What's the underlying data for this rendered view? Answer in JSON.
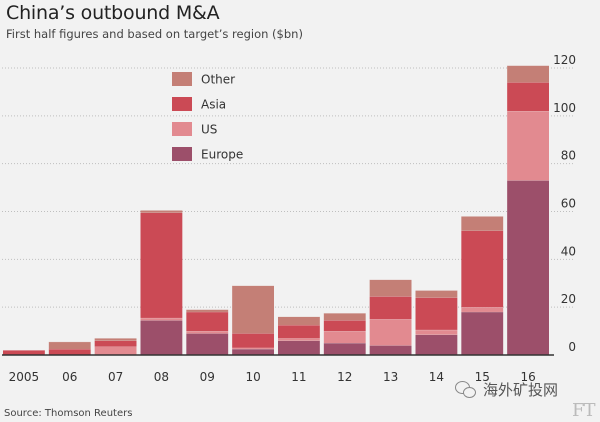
{
  "title": "China’s outbound M&A",
  "subtitle": "First half figures and based on target’s region ($bn)",
  "source": "Source: Thomson Reuters",
  "watermark": "海外矿投网",
  "brand": "FT",
  "colors": {
    "Europe": "#9c4f6a",
    "US": "#e28a90",
    "Asia": "#cb4a55",
    "Other": "#c47f76",
    "grid": "#bfbfbf",
    "axis": "#333333"
  },
  "chart_data": {
    "type": "bar",
    "stacked": true,
    "categories": [
      "2005",
      "06",
      "07",
      "08",
      "09",
      "10",
      "11",
      "12",
      "13",
      "14",
      "15",
      "16"
    ],
    "series": [
      {
        "name": "Europe",
        "values": [
          0,
          0,
          0,
          14.5,
          9,
          2.5,
          6,
          5,
          4,
          8.5,
          18,
          73
        ]
      },
      {
        "name": "US",
        "values": [
          0,
          0,
          3.5,
          1,
          1,
          0.5,
          1,
          5,
          11,
          2,
          2,
          29
        ]
      },
      {
        "name": "Asia",
        "values": [
          2,
          2.5,
          2.5,
          44,
          8,
          6,
          5.5,
          4.5,
          9.5,
          13.5,
          32,
          12
        ]
      },
      {
        "name": "Other",
        "values": [
          0,
          3,
          1,
          1,
          1,
          20,
          3.5,
          3,
          7,
          3,
          6,
          7
        ]
      }
    ],
    "ylim": [
      0,
      120
    ],
    "yticks": [
      0,
      20,
      40,
      60,
      80,
      100,
      120
    ],
    "legend_order": [
      "Other",
      "Asia",
      "US",
      "Europe"
    ],
    "legend_position": "top-center",
    "grid": "horizontal-dotted"
  }
}
